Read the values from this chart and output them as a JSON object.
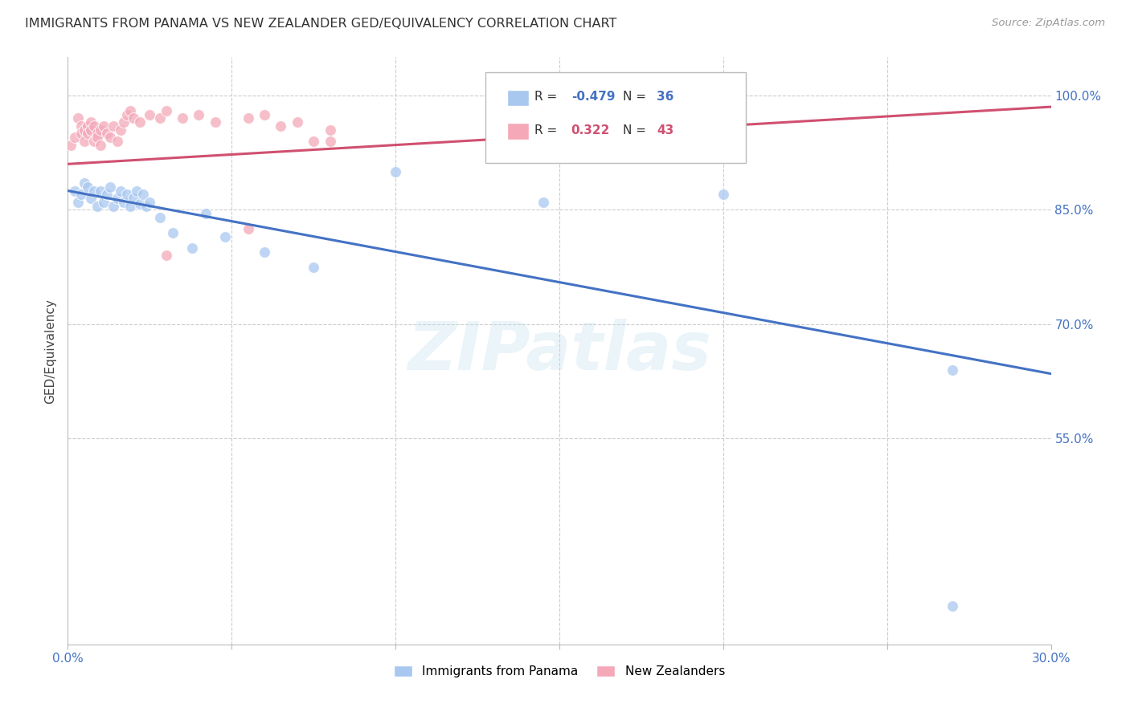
{
  "title": "IMMIGRANTS FROM PANAMA VS NEW ZEALANDER GED/EQUIVALENCY CORRELATION CHART",
  "source": "Source: ZipAtlas.com",
  "ylabel": "GED/Equivalency",
  "xlim": [
    0.0,
    0.3
  ],
  "ylim": [
    0.28,
    1.05
  ],
  "ytick_values": [
    1.0,
    0.85,
    0.7,
    0.55
  ],
  "ytick_labels": [
    "100.0%",
    "85.0%",
    "70.0%",
    "55.0%"
  ],
  "xtick_values": [
    0.0,
    0.05,
    0.1,
    0.15,
    0.2,
    0.25,
    0.3
  ],
  "legend_blue_r": "-0.479",
  "legend_blue_n": "36",
  "legend_pink_r": "0.322",
  "legend_pink_n": "43",
  "blue_color": "#A8C8F0",
  "pink_color": "#F4A8B8",
  "blue_line_color": "#4472C4",
  "pink_line_color": "#D05070",
  "watermark": "ZIPatlas",
  "blue_line_x0": 0.0,
  "blue_line_y0": 0.875,
  "blue_line_x1": 0.3,
  "blue_line_y1": 0.635,
  "pink_line_x0": 0.0,
  "pink_line_x1": 0.3,
  "pink_line_y0": 0.91,
  "pink_line_y1": 0.985,
  "blue_scatter_x": [
    0.002,
    0.003,
    0.004,
    0.005,
    0.006,
    0.007,
    0.008,
    0.009,
    0.01,
    0.011,
    0.012,
    0.013,
    0.014,
    0.015,
    0.016,
    0.017,
    0.018,
    0.019,
    0.02,
    0.021,
    0.022,
    0.023,
    0.024,
    0.025,
    0.028,
    0.032,
    0.038,
    0.042,
    0.048,
    0.06,
    0.075,
    0.1,
    0.145,
    0.2,
    0.27,
    0.27
  ],
  "blue_scatter_y": [
    0.875,
    0.86,
    0.87,
    0.885,
    0.88,
    0.865,
    0.875,
    0.855,
    0.875,
    0.86,
    0.87,
    0.88,
    0.855,
    0.865,
    0.875,
    0.86,
    0.87,
    0.855,
    0.865,
    0.875,
    0.858,
    0.87,
    0.855,
    0.86,
    0.84,
    0.82,
    0.8,
    0.845,
    0.815,
    0.795,
    0.775,
    0.9,
    0.86,
    0.87,
    0.64,
    0.33
  ],
  "pink_scatter_x": [
    0.001,
    0.002,
    0.003,
    0.004,
    0.004,
    0.005,
    0.005,
    0.006,
    0.006,
    0.007,
    0.007,
    0.008,
    0.008,
    0.009,
    0.009,
    0.01,
    0.01,
    0.011,
    0.012,
    0.013,
    0.014,
    0.015,
    0.016,
    0.017,
    0.018,
    0.019,
    0.02,
    0.022,
    0.025,
    0.028,
    0.03,
    0.035,
    0.04,
    0.045,
    0.055,
    0.06,
    0.065,
    0.07,
    0.075,
    0.08,
    0.08,
    0.055,
    0.03
  ],
  "pink_scatter_y": [
    0.935,
    0.945,
    0.97,
    0.96,
    0.95,
    0.955,
    0.94,
    0.96,
    0.95,
    0.965,
    0.955,
    0.94,
    0.96,
    0.95,
    0.945,
    0.955,
    0.935,
    0.96,
    0.95,
    0.945,
    0.96,
    0.94,
    0.955,
    0.965,
    0.975,
    0.98,
    0.97,
    0.965,
    0.975,
    0.97,
    0.98,
    0.97,
    0.975,
    0.965,
    0.97,
    0.975,
    0.96,
    0.965,
    0.94,
    0.955,
    0.94,
    0.825,
    0.79
  ]
}
